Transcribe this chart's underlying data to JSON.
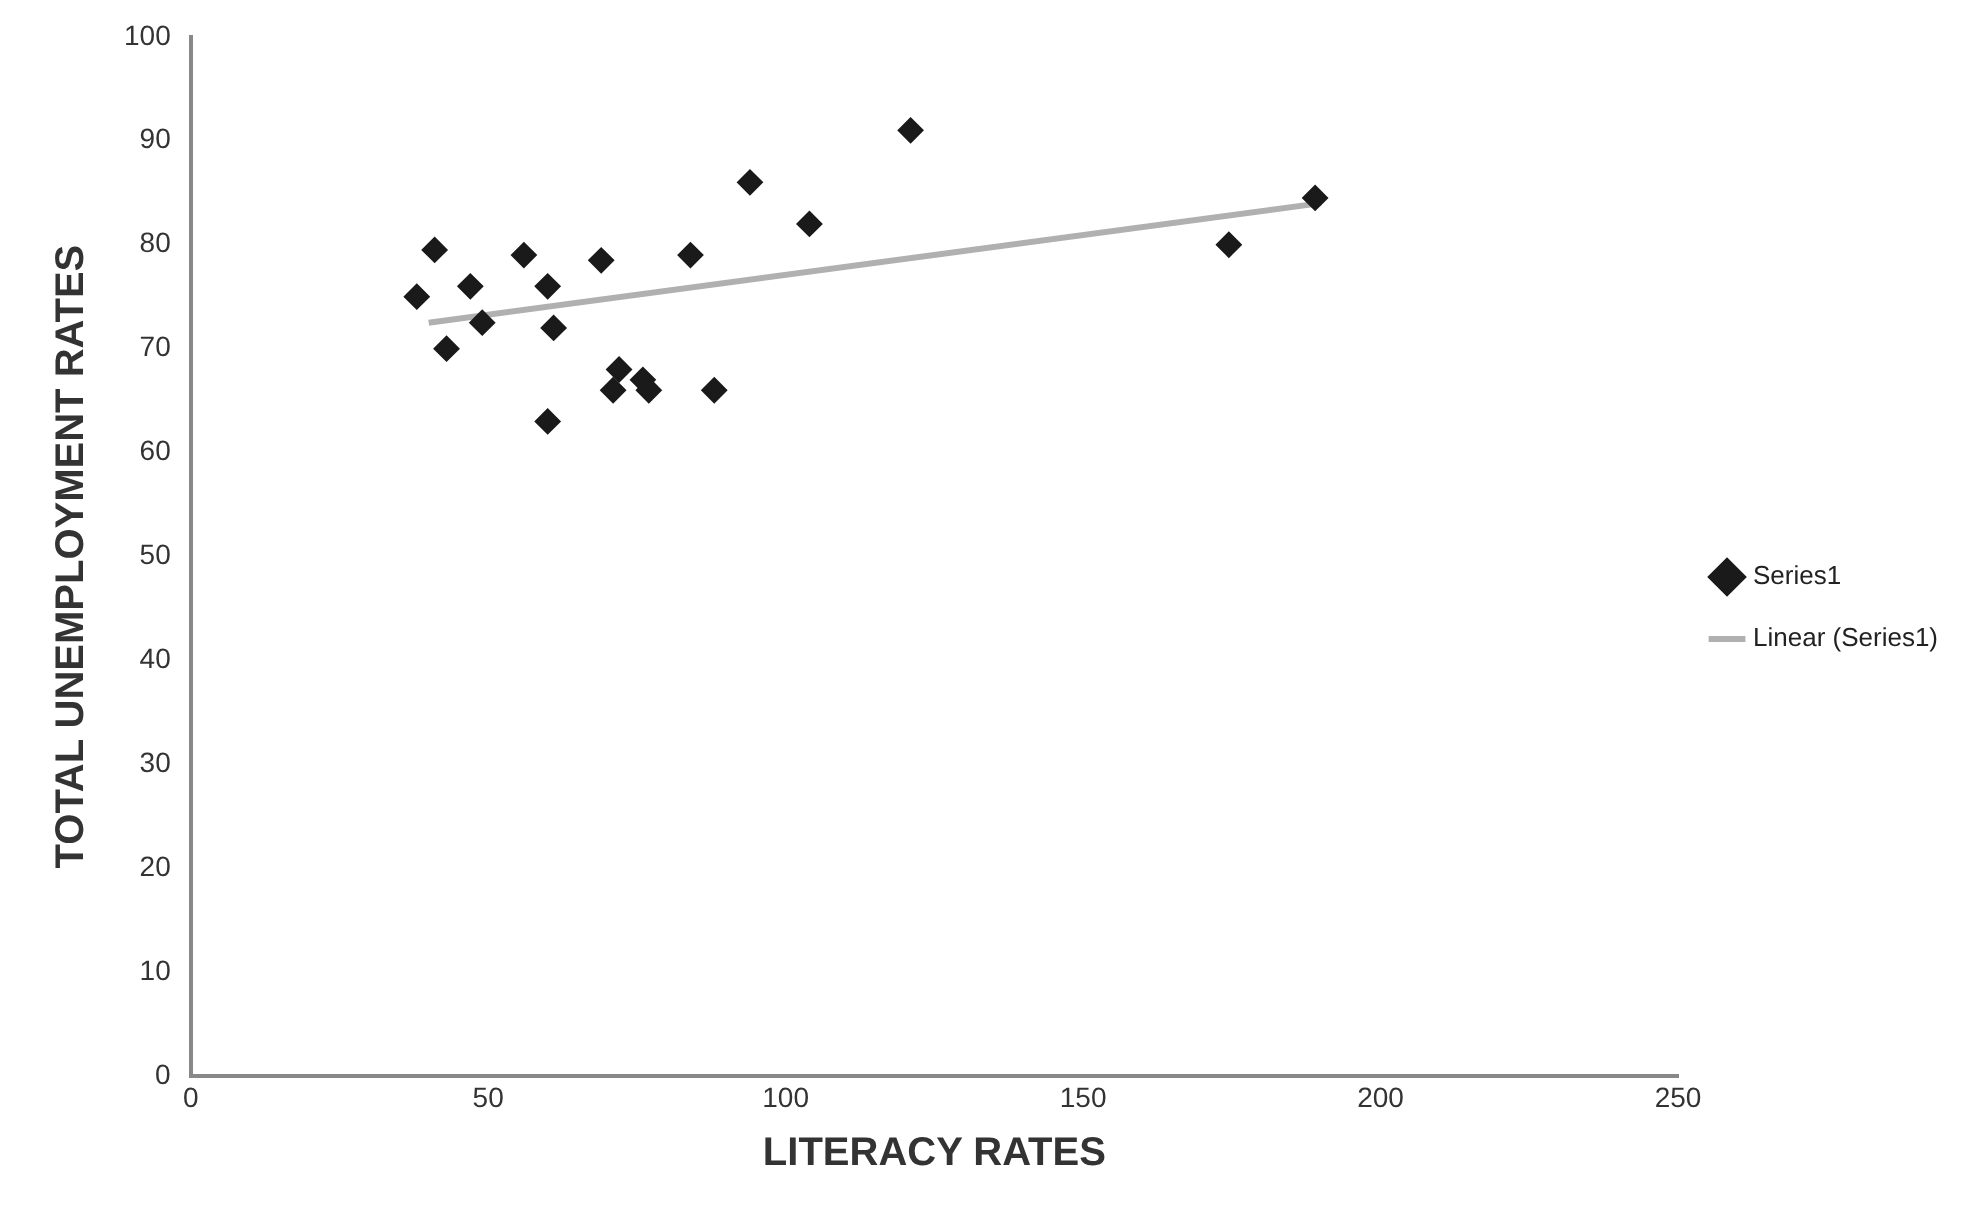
{
  "chart_data": {
    "type": "scatter",
    "xlabel": "LITERACY RATES",
    "ylabel": "TOTAL UNEMPLOYMENT RATES",
    "xlim": [
      0,
      250
    ],
    "xticks": [
      0,
      50,
      100,
      150,
      200,
      250
    ],
    "ylim": [
      0,
      100
    ],
    "yticks": [
      0,
      10,
      20,
      30,
      40,
      50,
      60,
      70,
      80,
      90,
      100
    ],
    "grid": false,
    "legend": "right",
    "series": [
      {
        "name": "Series1",
        "marker": "diamond",
        "color": "#1a1a1a",
        "x": [
          41,
          38,
          47,
          49,
          43,
          56,
          60,
          61,
          60,
          69,
          72,
          76,
          71,
          77,
          84,
          88,
          94,
          104,
          121,
          174.5,
          189
        ],
        "values": [
          79.5,
          75,
          76,
          72.5,
          70,
          79,
          76,
          72,
          63,
          78.5,
          68,
          67,
          66,
          66,
          79,
          66,
          86,
          82,
          91,
          80,
          84.5
        ]
      },
      {
        "name": "Linear (Series1)",
        "type": "line",
        "marker": "none",
        "color": "#b0b0b0",
        "x": [
          40,
          190
        ],
        "values": [
          72.5,
          84
        ]
      }
    ]
  }
}
